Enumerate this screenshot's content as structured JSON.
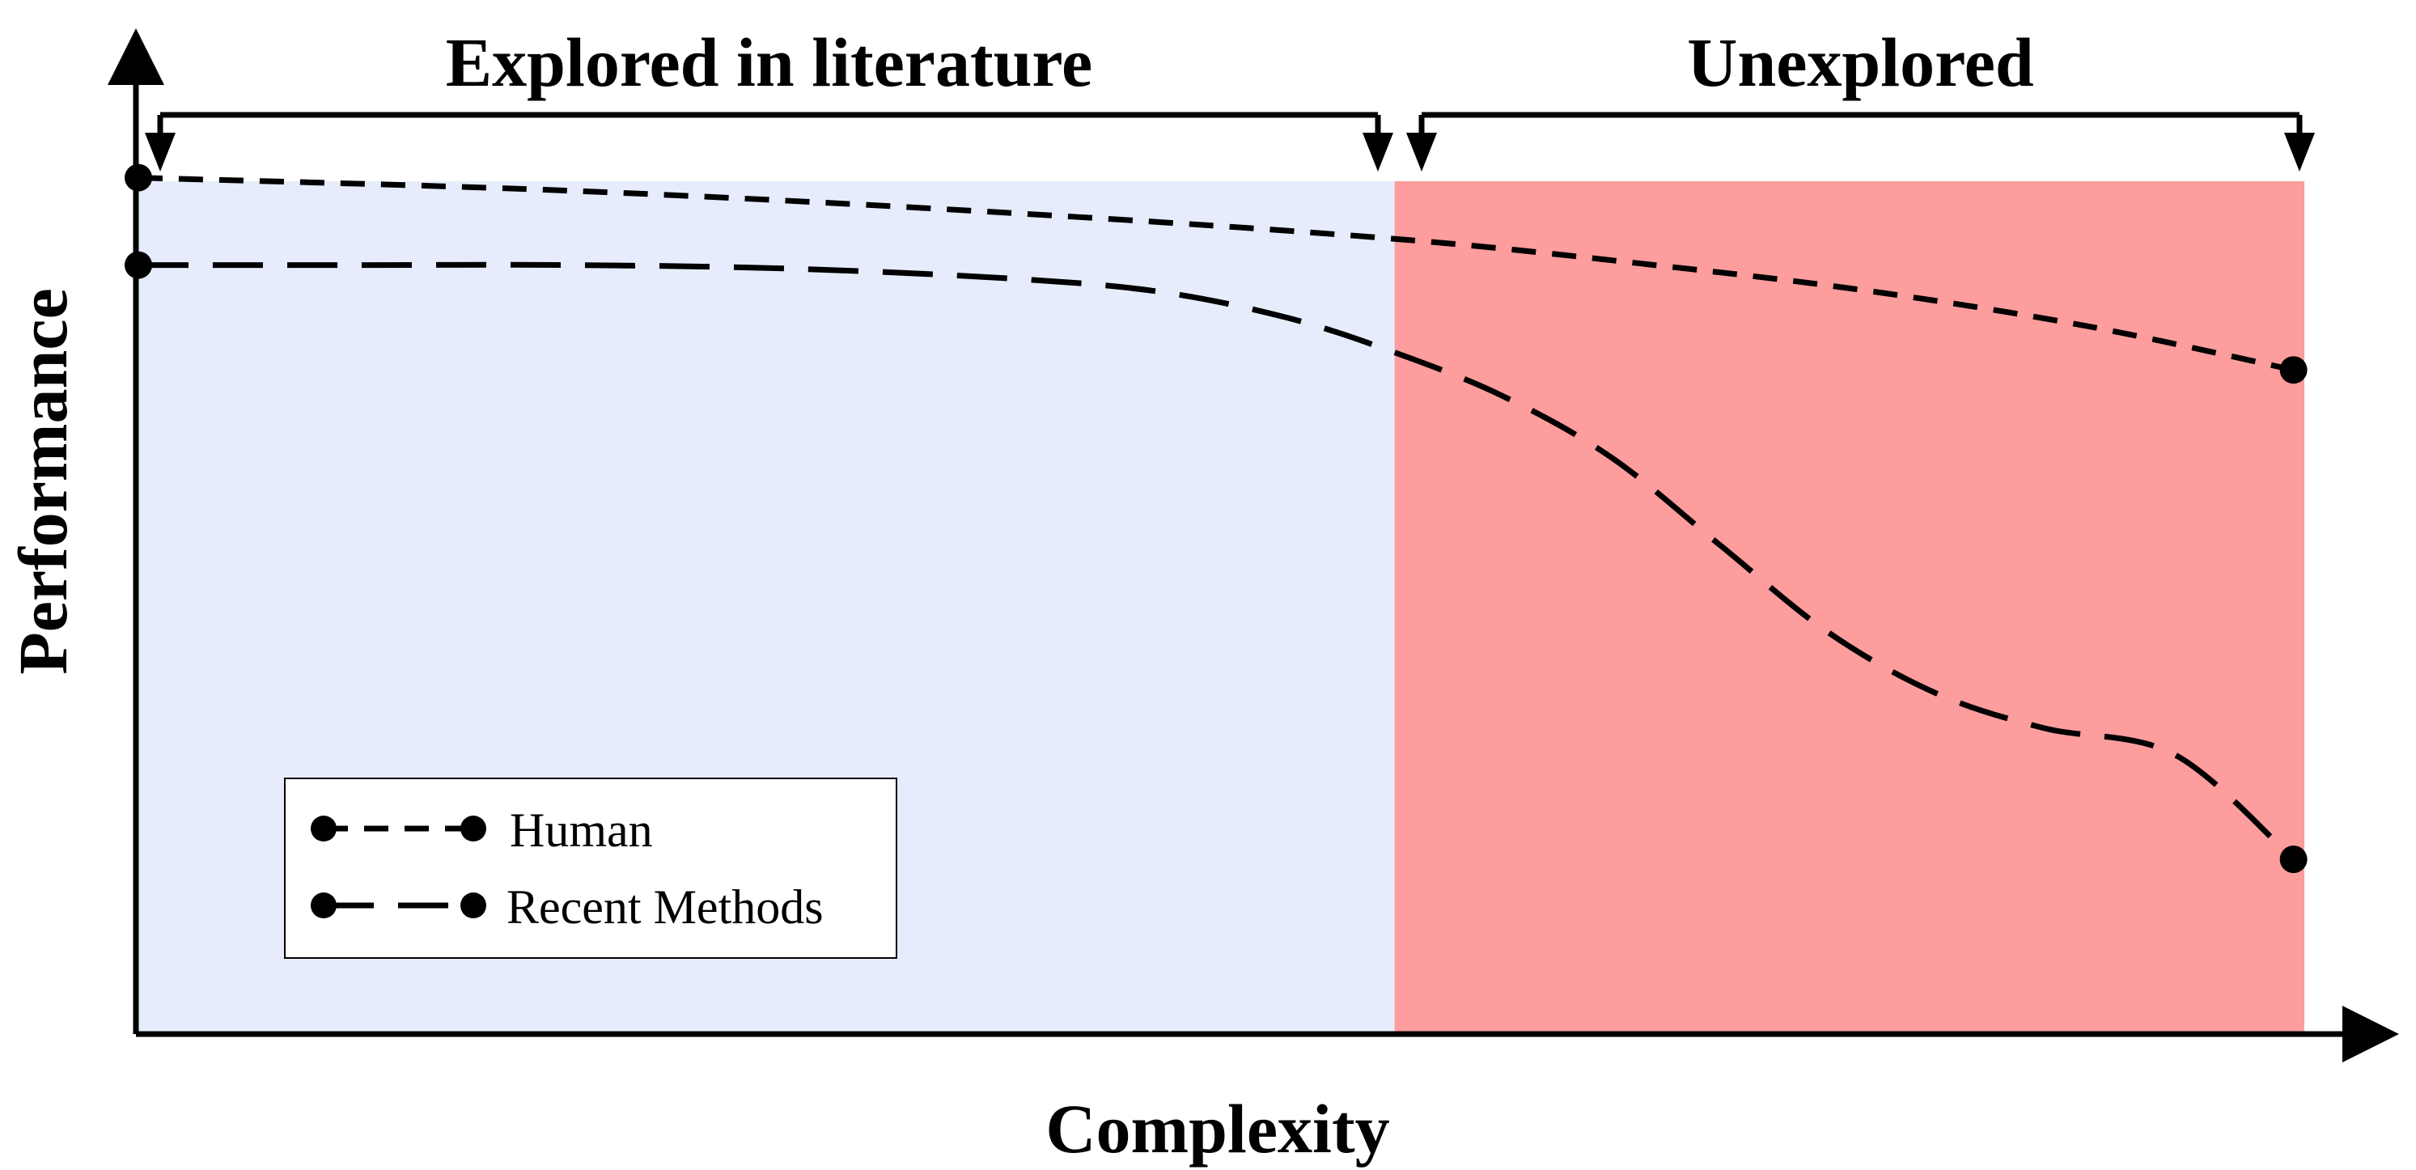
{
  "chart_data": {
    "type": "line",
    "xlabel": "Complexity",
    "ylabel": "Performance",
    "x_range": [
      0,
      1
    ],
    "y_range": [
      0,
      1
    ],
    "grid": false,
    "legend_position": "bottom-left",
    "colors": {
      "explored_region": "#e6ecfb",
      "unexplored_region": "#fd9d9d",
      "ink": "#000000"
    },
    "regions": [
      {
        "label": "Explored in literature",
        "x_start": 0.0,
        "x_end": 0.58
      },
      {
        "label": "Unexplored",
        "x_start": 0.58,
        "x_end": 1.0
      }
    ],
    "series": [
      {
        "name": "Human",
        "dash": "short",
        "points": [
          [
            0.0,
            0.98
          ],
          [
            0.2,
            0.965
          ],
          [
            0.4,
            0.94
          ],
          [
            0.58,
            0.91
          ],
          [
            0.7,
            0.88
          ],
          [
            0.8,
            0.85
          ],
          [
            0.9,
            0.81
          ],
          [
            0.995,
            0.76
          ]
        ]
      },
      {
        "name": "Recent Methods",
        "dash": "long",
        "points": [
          [
            0.0,
            0.88
          ],
          [
            0.1,
            0.88
          ],
          [
            0.2,
            0.88
          ],
          [
            0.3,
            0.876
          ],
          [
            0.4,
            0.865
          ],
          [
            0.47,
            0.85
          ],
          [
            0.53,
            0.82
          ],
          [
            0.58,
            0.78
          ],
          [
            0.63,
            0.73
          ],
          [
            0.68,
            0.66
          ],
          [
            0.73,
            0.56
          ],
          [
            0.78,
            0.46
          ],
          [
            0.83,
            0.39
          ],
          [
            0.88,
            0.35
          ],
          [
            0.94,
            0.32
          ],
          [
            0.995,
            0.2
          ]
        ]
      }
    ]
  }
}
